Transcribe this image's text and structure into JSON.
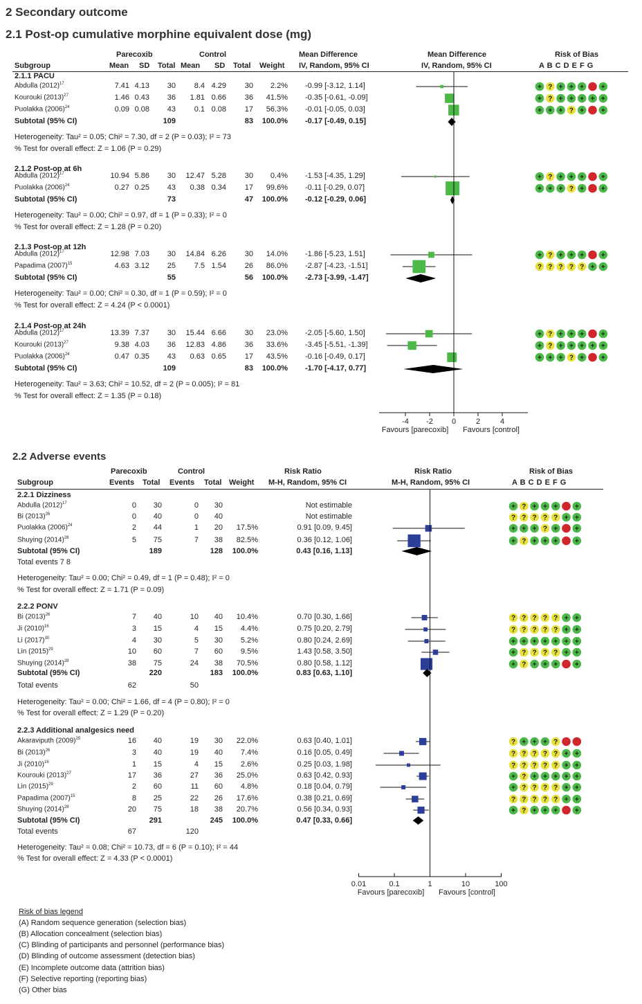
{
  "headings": {
    "main": "2 Secondary outcome",
    "morphine": "2.1 Post-op cumulative morphine equivalent dose (mg)",
    "adverse": "2.2 Adverse events"
  },
  "morphine_header": {
    "group1": "Parecoxib",
    "group2": "Control",
    "effect1": "Mean Difference",
    "effect2": "Mean Difference",
    "rob": "Risk of Bias",
    "subgroup": "Subgroup",
    "mean": "Mean",
    "sd": "SD",
    "total": "Total",
    "weight": "Weight",
    "method1": "IV, Random, 95% CI",
    "method2": "IV, Random, 95% CI",
    "letters": "A B C D E F G"
  },
  "adverse_header": {
    "group1": "Parecoxib",
    "group2": "Control",
    "effect1": "Risk Ratio",
    "effect2": "Risk Ratio",
    "rob": "Risk of Bias",
    "subgroup": "Subgroup",
    "events": "Events",
    "total": "Total",
    "weight": "Weight",
    "method1": "M-H, Random, 95% CI",
    "method2": "M-H, Random, 95% CI",
    "letters": "A B C D E F G"
  },
  "axis1": {
    "ticks": [
      "-4",
      "-2",
      "0",
      "2",
      "4"
    ],
    "favours_left": "Favours [parecoxib]",
    "favours_right": "Favours [control]"
  },
  "axis2": {
    "ticks": [
      "0.01",
      "0.1",
      "1",
      "10",
      "100"
    ],
    "favours_left": "Favours [parecoxib]",
    "favours_right": "Favours [control]"
  },
  "legend": {
    "title": "Risk of bias legend",
    "items": [
      "(A) Random sequence generation (selection bias)",
      "(B) Allocation concealment (selection bias)",
      "(C) Blinding of participants and personnel (performance bias)",
      "(D) Blinding of outcome assessment (detection bias)",
      "(E) Incomplete outcome data (attrition bias)",
      "(F) Selective reporting (reporting bias)",
      "(G) Other bias"
    ]
  },
  "colors": {
    "low": "#4cb848",
    "unclear": "#e8e03c",
    "high": "#d0262c",
    "green_marker": "#4cb848",
    "blue_marker": "#2a3e9a"
  },
  "chart_data": [
    {
      "type": "forest",
      "title": "2.1 Post-op cumulative morphine equivalent dose (mg)",
      "measure": "Mean Difference, IV, Random, 95% CI",
      "xlim": [
        -5,
        5
      ],
      "subgroups": [
        {
          "name": "2.1.1 PACU",
          "studies": [
            {
              "study": "Abdulla (2012)",
              "ref": "17",
              "m1": "7.41",
              "sd1": "4.13",
              "n1": "30",
              "m2": "8.4",
              "sd2": "4.29",
              "n2": "30",
              "weight": "2.2%",
              "ci": "-0.99 [-3.12, 1.14]",
              "est": -0.99,
              "lo": -3.12,
              "hi": 1.14,
              "w": 2.2,
              "rob": "LULLLHL"
            },
            {
              "study": "Kourouki (2013)",
              "ref": "27",
              "m1": "1.46",
              "sd1": "0.43",
              "n1": "36",
              "m2": "1.81",
              "sd2": "0.66",
              "n2": "36",
              "weight": "41.5%",
              "ci": "-0.35 [-0.61, -0.09]",
              "est": -0.35,
              "lo": -0.61,
              "hi": -0.09,
              "w": 41.5,
              "rob": "LULLLLL"
            },
            {
              "study": "Puolakka (2006)",
              "ref": "24",
              "m1": "0.09",
              "sd1": "0.08",
              "n1": "43",
              "m2": "0.1",
              "sd2": "0.08",
              "n2": "17",
              "weight": "56.3%",
              "ci": "-0.01 [-0.05, 0.03]",
              "est": -0.01,
              "lo": -0.05,
              "hi": 0.03,
              "w": 56.3,
              "rob": "LLLULHL"
            }
          ],
          "subtotal": {
            "label": "Subtotal (95% CI)",
            "n1": "109",
            "n2": "83",
            "weight": "100.0%",
            "ci": "-0.17 [-0.49, 0.15]",
            "est": -0.17,
            "lo": -0.49,
            "hi": 0.15
          },
          "heterogeneity": "Heterogeneity: Tau² = 0.05; Chi² = 7.30, df = 2 (P = 0.03); I² = 73",
          "test": "% Test for overall effect: Z = 1.06 (P = 0.29)"
        },
        {
          "name": "2.1.2 Post-op at 6h",
          "studies": [
            {
              "study": "Abdulla (2012)",
              "ref": "17",
              "m1": "10.94",
              "sd1": "5.86",
              "n1": "30",
              "m2": "12.47",
              "sd2": "5.28",
              "n2": "30",
              "weight": "0.4%",
              "ci": "-1.53 [-4.35, 1.29]",
              "est": -1.53,
              "lo": -4.35,
              "hi": 1.29,
              "w": 0.4,
              "rob": "LULLLHL"
            },
            {
              "study": "Puolakka (2006)",
              "ref": "24",
              "m1": "0.27",
              "sd1": "0.25",
              "n1": "43",
              "m2": "0.38",
              "sd2": "0.34",
              "n2": "17",
              "weight": "99.6%",
              "ci": "-0.11 [-0.29, 0.07]",
              "est": -0.11,
              "lo": -0.29,
              "hi": 0.07,
              "w": 99.6,
              "rob": "LLLULHL"
            }
          ],
          "subtotal": {
            "label": "Subtotal (95% CI)",
            "n1": "73",
            "n2": "47",
            "weight": "100.0%",
            "ci": "-0.12 [-0.29, 0.06]",
            "est": -0.12,
            "lo": -0.29,
            "hi": 0.06
          },
          "heterogeneity": "Heterogeneity: Tau² = 0.00; Chi² = 0.97, df = 1 (P = 0.33); I² = 0",
          "test": "% Test for overall effect: Z = 1.28 (P = 0.20)"
        },
        {
          "name": "2.1.3 Post-op at 12h",
          "studies": [
            {
              "study": "Abdulla (2012)",
              "ref": "17",
              "m1": "12.98",
              "sd1": "7.03",
              "n1": "30",
              "m2": "14.84",
              "sd2": "6.26",
              "n2": "30",
              "weight": "14.0%",
              "ci": "-1.86 [-5.23, 1.51]",
              "est": -1.86,
              "lo": -5.23,
              "hi": 1.51,
              "w": 14.0,
              "rob": "LULLLHL"
            },
            {
              "study": "Papadima (2007)",
              "ref": "15",
              "m1": "4.63",
              "sd1": "3.12",
              "n1": "25",
              "m2": "7.5",
              "sd2": "1.54",
              "n2": "26",
              "weight": "86.0%",
              "ci": "-2.87 [-4.23, -1.51]",
              "est": -2.87,
              "lo": -4.23,
              "hi": -1.51,
              "w": 86.0,
              "rob": "UUUUULL"
            }
          ],
          "subtotal": {
            "label": "Subtotal (95% CI)",
            "n1": "55",
            "n2": "56",
            "weight": "100.0%",
            "ci": "-2.73 [-3.99, -1.47]",
            "est": -2.73,
            "lo": -3.99,
            "hi": -1.47
          },
          "heterogeneity": "Heterogeneity: Tau² = 0.00; Chi² = 0.30, df = 1 (P = 0.59); I² = 0",
          "test": "% Test for overall effect: Z = 4.24 (P < 0.0001)"
        },
        {
          "name": "2.1.4 Post-op at 24h",
          "studies": [
            {
              "study": "Abdulla (2012)",
              "ref": "17",
              "m1": "13.39",
              "sd1": "7.37",
              "n1": "30",
              "m2": "15.44",
              "sd2": "6.66",
              "n2": "30",
              "weight": "23.0%",
              "ci": "-2.05 [-5.60, 1.50]",
              "est": -2.05,
              "lo": -5.6,
              "hi": 1.5,
              "w": 23.0,
              "rob": "LULLLHL"
            },
            {
              "study": "Kourouki (2013)",
              "ref": "27",
              "m1": "9.38",
              "sd1": "4.03",
              "n1": "36",
              "m2": "12.83",
              "sd2": "4.86",
              "n2": "36",
              "weight": "33.6%",
              "ci": "-3.45 [-5.51, -1.39]",
              "est": -3.45,
              "lo": -5.51,
              "hi": -1.39,
              "w": 33.6,
              "rob": "LULLLLL"
            },
            {
              "study": "Puolakka (2006)",
              "ref": "24",
              "m1": "0.47",
              "sd1": "0.35",
              "n1": "43",
              "m2": "0.63",
              "sd2": "0.65",
              "n2": "17",
              "weight": "43.5%",
              "ci": "-0.16 [-0.49, 0.17]",
              "est": -0.16,
              "lo": -0.49,
              "hi": 0.17,
              "w": 43.5,
              "rob": "LLLULHL"
            }
          ],
          "subtotal": {
            "label": "Subtotal (95% CI)",
            "n1": "109",
            "n2": "83",
            "weight": "100.0%",
            "ci": "-1.70 [-4.17, 0.77]",
            "est": -1.7,
            "lo": -4.17,
            "hi": 0.77
          },
          "heterogeneity": "Heterogeneity: Tau² = 3.63; Chi² = 10.52, df = 2 (P = 0.005); I² = 81",
          "test": "% Test for overall effect: Z = 1.35 (P = 0.18)"
        }
      ]
    },
    {
      "type": "forest",
      "title": "2.2 Adverse events",
      "measure": "Risk Ratio, M-H, Random, 95% CI",
      "xscale": "log",
      "xlim": [
        0.01,
        100
      ],
      "subgroups": [
        {
          "name": "2.2.1 Dizziness",
          "studies": [
            {
              "study": "Abdulla (2012)",
              "ref": "17",
              "e1": "0",
              "n1": "30",
              "e2": "0",
              "n2": "30",
              "weight": "",
              "ci": "Not estimable",
              "est": null,
              "lo": null,
              "hi": null,
              "w": 0,
              "rob": "LULLLHL"
            },
            {
              "study": "Bi (2013)",
              "ref": "26",
              "e1": "0",
              "n1": "40",
              "e2": "0",
              "n2": "40",
              "weight": "",
              "ci": "Not estimable",
              "est": null,
              "lo": null,
              "hi": null,
              "w": 0,
              "rob": "UUUUULL"
            },
            {
              "study": "Puolakka (2006)",
              "ref": "24",
              "e1": "2",
              "n1": "44",
              "e2": "1",
              "n2": "20",
              "weight": "17.5%",
              "ci": "0.91 [0.09, 9.45]",
              "est": 0.91,
              "lo": 0.09,
              "hi": 9.45,
              "w": 17.5,
              "rob": "LLLULHL"
            },
            {
              "study": "Shuying (2014)",
              "ref": "28",
              "e1": "5",
              "n1": "75",
              "e2": "7",
              "n2": "38",
              "weight": "82.5%",
              "ci": "0.36 [0.12, 1.06]",
              "est": 0.36,
              "lo": 0.12,
              "hi": 1.06,
              "w": 82.5,
              "rob": "LULLLHL"
            }
          ],
          "subtotal": {
            "label": "Subtotal (95% CI)",
            "n1": "189",
            "n2": "128",
            "weight": "100.0%",
            "ci": "0.43 [0.16, 1.13]",
            "est": 0.43,
            "lo": 0.16,
            "hi": 1.13
          },
          "total_events": "Total events 7 8",
          "heterogeneity": "Heterogeneity: Tau² = 0.00; Chi² = 0.49, df = 1 (P = 0.48); I² = 0",
          "test": "% Test for overall effect: Z = 1.71 (P = 0.09)"
        },
        {
          "name": "2.2.2 PONV",
          "studies": [
            {
              "study": "Bi (2013)",
              "ref": "26",
              "e1": "7",
              "n1": "40",
              "e2": "10",
              "n2": "40",
              "weight": "10.4%",
              "ci": "0.70 [0.30, 1.66]",
              "est": 0.7,
              "lo": 0.3,
              "hi": 1.66,
              "w": 10.4,
              "rob": "UUUUULL"
            },
            {
              "study": "Ji (2010)",
              "ref": "16",
              "e1": "3",
              "n1": "15",
              "e2": "4",
              "n2": "15",
              "weight": "4.4%",
              "ci": "0.75 [0.20, 2.79]",
              "est": 0.75,
              "lo": 0.2,
              "hi": 2.79,
              "w": 4.4,
              "rob": "UUUUULL"
            },
            {
              "study": "Li (2017)",
              "ref": "30",
              "e1": "4",
              "n1": "30",
              "e2": "5",
              "n2": "30",
              "weight": "5.2%",
              "ci": "0.80 [0.24, 2.69]",
              "est": 0.8,
              "lo": 0.24,
              "hi": 2.69,
              "w": 5.2,
              "rob": "LLLLLLL"
            },
            {
              "study": "Lin (2015)",
              "ref": "29",
              "e1": "10",
              "n1": "60",
              "e2": "7",
              "n2": "60",
              "weight": "9.5%",
              "ci": "1.43 [0.58, 3.50]",
              "est": 1.43,
              "lo": 0.58,
              "hi": 3.5,
              "w": 9.5,
              "rob": "LUUUULL"
            },
            {
              "study": "Shuying (2014)",
              "ref": "28",
              "e1": "38",
              "n1": "75",
              "e2": "24",
              "n2": "38",
              "weight": "70.5%",
              "ci": "0.80 [0.58, 1.12]",
              "est": 0.8,
              "lo": 0.58,
              "hi": 1.12,
              "w": 70.5,
              "rob": "LULLLHL"
            }
          ],
          "subtotal": {
            "label": "Subtotal (95% CI)",
            "n1": "220",
            "n2": "183",
            "weight": "100.0%",
            "ci": "0.83 [0.63, 1.10]",
            "est": 0.83,
            "lo": 0.63,
            "hi": 1.1
          },
          "total_events": {
            "label": "Total events",
            "e1": "62",
            "e2": "50"
          },
          "heterogeneity": "Heterogeneity: Tau² = 0.00; Chi² = 1.66, df = 4 (P = 0.80); I² = 0",
          "test": "% Test for overall effect: Z = 1.29 (P = 0.20)"
        },
        {
          "name": "2.2.3 Additional analgesics need",
          "studies": [
            {
              "study": "Akaraviputh (2009)",
              "ref": "25",
              "e1": "16",
              "n1": "40",
              "e2": "19",
              "n2": "30",
              "weight": "22.0%",
              "ci": "0.63 [0.40, 1.01]",
              "est": 0.63,
              "lo": 0.4,
              "hi": 1.01,
              "w": 22.0,
              "rob": "ULLLUHH"
            },
            {
              "study": "Bi (2013)",
              "ref": "26",
              "e1": "3",
              "n1": "40",
              "e2": "19",
              "n2": "40",
              "weight": "7.4%",
              "ci": "0.16 [0.05, 0.49]",
              "est": 0.16,
              "lo": 0.05,
              "hi": 0.49,
              "w": 7.4,
              "rob": "UUUUULL"
            },
            {
              "study": "Ji (2010)",
              "ref": "16",
              "e1": "1",
              "n1": "15",
              "e2": "4",
              "n2": "15",
              "weight": "2.6%",
              "ci": "0.25 [0.03, 1.98]",
              "est": 0.25,
              "lo": 0.03,
              "hi": 1.98,
              "w": 2.6,
              "rob": "UUUUULL"
            },
            {
              "study": "Kourouki (2013)",
              "ref": "27",
              "e1": "17",
              "n1": "36",
              "e2": "27",
              "n2": "36",
              "weight": "25.0%",
              "ci": "0.63 [0.42, 0.93]",
              "est": 0.63,
              "lo": 0.42,
              "hi": 0.93,
              "w": 25.0,
              "rob": "LULLLLL"
            },
            {
              "study": "Lin (2015)",
              "ref": "29",
              "e1": "2",
              "n1": "60",
              "e2": "11",
              "n2": "60",
              "weight": "4.8%",
              "ci": "0.18 [0.04, 0.79]",
              "est": 0.18,
              "lo": 0.04,
              "hi": 0.79,
              "w": 4.8,
              "rob": "LUUUULL"
            },
            {
              "study": "Papadima (2007)",
              "ref": "15",
              "e1": "8",
              "n1": "25",
              "e2": "22",
              "n2": "26",
              "weight": "17.6%",
              "ci": "0.38 [0.21, 0.69]",
              "est": 0.38,
              "lo": 0.21,
              "hi": 0.69,
              "w": 17.6,
              "rob": "UUUUULL"
            },
            {
              "study": "Shuying (2014)",
              "ref": "28",
              "e1": "20",
              "n1": "75",
              "e2": "18",
              "n2": "38",
              "weight": "20.7%",
              "ci": "0.56 [0.34, 0.93]",
              "est": 0.56,
              "lo": 0.34,
              "hi": 0.93,
              "w": 20.7,
              "rob": "LULLLHL"
            }
          ],
          "subtotal": {
            "label": "Subtotal (95% CI)",
            "n1": "291",
            "n2": "245",
            "weight": "100.0%",
            "ci": "0.47 [0.33, 0.66]",
            "est": 0.47,
            "lo": 0.33,
            "hi": 0.66
          },
          "total_events": {
            "label": "Total events",
            "e1": "67",
            "e2": "120"
          },
          "heterogeneity": "Heterogeneity: Tau² = 0.08; Chi² = 10.73, df = 6 (P = 0.10); I² = 44",
          "test": "% Test for overall effect: Z = 4.33 (P < 0.0001)"
        }
      ]
    }
  ]
}
